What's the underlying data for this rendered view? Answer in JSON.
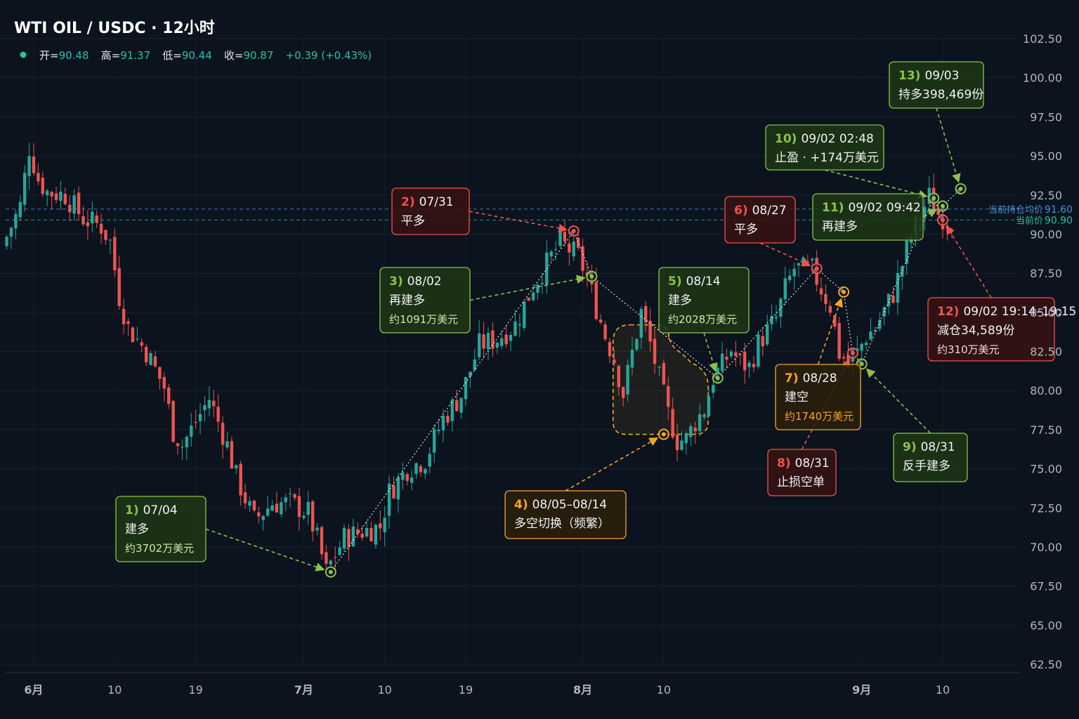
{
  "title": "WTI OIL / USDC · 12小时",
  "ohlc": {
    "open_label": "开=",
    "open": "90.48",
    "high_label": "高=",
    "high": "91.37",
    "low_label": "低=",
    "low": "90.44",
    "close_label": "收=",
    "close": "90.87",
    "change": "+0.39 (+0.43%)"
  },
  "colors": {
    "background": "#0b131e",
    "up": "#26a69a",
    "down": "#ef5350",
    "long": "#8bc34a",
    "short": "#ef5350",
    "neutral": "#f5a623"
  },
  "chart_data": {
    "type": "candlestick",
    "title": "WTI OIL / USDC · 12小时",
    "ylim": [
      62.5,
      102.5
    ],
    "y_ticks": [
      "102.50",
      "100.00",
      "97.50",
      "95.00",
      "92.50",
      "90.00",
      "87.50",
      "85.00",
      "82.50",
      "80.00",
      "77.50",
      "75.00",
      "72.50",
      "70.00",
      "67.50",
      "65.00",
      "62.50"
    ],
    "x_ticks": [
      {
        "label": "6月",
        "date": "06-01",
        "bold": true
      },
      {
        "label": "10",
        "date": "06-10",
        "bold": false
      },
      {
        "label": "19",
        "date": "06-19",
        "bold": false
      },
      {
        "label": "7月",
        "date": "07-01",
        "bold": true
      },
      {
        "label": "10",
        "date": "07-10",
        "bold": false
      },
      {
        "label": "19",
        "date": "07-19",
        "bold": false
      },
      {
        "label": "8月",
        "date": "08-01",
        "bold": true
      },
      {
        "label": "10",
        "date": "08-10",
        "bold": false
      },
      {
        "label": "9月",
        "date": "09-01",
        "bold": true
      },
      {
        "label": "10",
        "date": "09-10",
        "bold": false
      }
    ],
    "price_path": [
      [
        "05-29",
        89.2
      ],
      [
        "05-31",
        91.8
      ],
      [
        "06-01",
        95.5
      ],
      [
        "06-02",
        93.5
      ],
      [
        "06-03",
        92.7
      ],
      [
        "06-05",
        92.5
      ],
      [
        "06-07",
        91.0
      ],
      [
        "06-09",
        90.5
      ],
      [
        "06-10",
        89.5
      ],
      [
        "06-11",
        86.0
      ],
      [
        "06-12",
        84.0
      ],
      [
        "06-14",
        82.5
      ],
      [
        "06-16",
        80.2
      ],
      [
        "06-17",
        77.4
      ],
      [
        "06-18",
        76.5
      ],
      [
        "06-20",
        78.5
      ],
      [
        "06-21",
        79.5
      ],
      [
        "06-23",
        76.5
      ],
      [
        "06-24",
        74.5
      ],
      [
        "06-26",
        71.7
      ],
      [
        "06-28",
        72.8
      ],
      [
        "06-30",
        72.8
      ],
      [
        "07-02",
        72.2
      ],
      [
        "07-03",
        70.5
      ],
      [
        "07-04",
        68.4
      ],
      [
        "07-06",
        70.6
      ],
      [
        "07-08",
        71.0
      ],
      [
        "07-10",
        71.3
      ],
      [
        "07-11",
        73.5
      ],
      [
        "07-13",
        75.0
      ],
      [
        "07-15",
        75.6
      ],
      [
        "07-17",
        78.2
      ],
      [
        "07-19",
        79.7
      ],
      [
        "07-21",
        82.9
      ],
      [
        "07-23",
        83.3
      ],
      [
        "07-25",
        84.2
      ],
      [
        "07-27",
        86.7
      ],
      [
        "07-30",
        89.5
      ],
      [
        "07-31",
        89.0
      ],
      [
        "08-01",
        88.6
      ],
      [
        "08-02",
        87.2
      ],
      [
        "08-03",
        85.3
      ],
      [
        "08-04",
        83.5
      ],
      [
        "08-05",
        82.0
      ],
      [
        "08-06",
        79.8
      ],
      [
        "08-08",
        85.0
      ],
      [
        "08-09",
        83.0
      ],
      [
        "08-11",
        78.5
      ],
      [
        "08-12",
        76.8
      ],
      [
        "08-13",
        76.9
      ],
      [
        "08-14",
        78.0
      ],
      [
        "08-15",
        78.8
      ],
      [
        "08-16",
        80.8
      ],
      [
        "08-17",
        81.6
      ],
      [
        "08-18",
        82.6
      ],
      [
        "08-19",
        81.8
      ],
      [
        "08-20",
        81.5
      ],
      [
        "08-21",
        83.0
      ],
      [
        "08-23",
        84.6
      ],
      [
        "08-24",
        86.5
      ],
      [
        "08-25",
        87.8
      ],
      [
        "08-27",
        87.7
      ],
      [
        "08-28",
        86.5
      ],
      [
        "08-29",
        85.4
      ],
      [
        "08-30",
        82.4
      ],
      [
        "08-31",
        81.8
      ],
      [
        "09-01",
        82.4
      ],
      [
        "09-02",
        83.5
      ],
      [
        "09-03",
        84.0
      ],
      [
        "09-05",
        86.2
      ],
      [
        "09-07",
        89.9
      ],
      [
        "09-09",
        92.4
      ],
      [
        "09-10",
        91.3
      ],
      [
        "09-11",
        90.9
      ]
    ],
    "price_lines": [
      {
        "label": "当前持仓均价",
        "value_text": "91.60",
        "value": 91.6,
        "color": "#4a90d9"
      },
      {
        "label": "当前价",
        "value_text": "90.90",
        "value": 90.9,
        "color": "#26c2a4"
      }
    ],
    "range_annotation": {
      "from": "08-05",
      "to": "08-14",
      "low": 77.2,
      "high": 84.2
    },
    "annotations": [
      {
        "num": "1)",
        "title": "07/04",
        "line2": "建多",
        "line3": "约3702万美元",
        "kind": "long",
        "marker_date": "07-04",
        "marker_price": 68.4
      },
      {
        "num": "2)",
        "title": "07/31",
        "line2": "平多",
        "line3": "",
        "kind": "short",
        "marker_date": "07-31",
        "marker_price": 90.2
      },
      {
        "num": "3)",
        "title": "08/02",
        "line2": "再建多",
        "line3": "约1091万美元",
        "kind": "long",
        "marker_date": "08-02",
        "marker_price": 87.3
      },
      {
        "num": "4)",
        "title": "08/05–08/14",
        "line2": "多空切换（频繁）",
        "line3": "",
        "kind": "neutral",
        "marker_date": "08-10",
        "marker_price": 77.2
      },
      {
        "num": "5)",
        "title": "08/14",
        "line2": "建多",
        "line3": "约2028万美元",
        "kind": "long",
        "marker_date": "08-16",
        "marker_price": 80.8
      },
      {
        "num": "6)",
        "title": "08/27",
        "line2": "平多",
        "line3": "",
        "kind": "short",
        "marker_date": "08-27",
        "marker_price": 87.8
      },
      {
        "num": "7)",
        "title": "08/28",
        "line2": "建空",
        "line3": "约1740万美元",
        "kind": "neutral",
        "marker_date": "08-30",
        "marker_price": 86.3
      },
      {
        "num": "8)",
        "title": "08/31",
        "line2": "止损空单",
        "line3": "",
        "kind": "short",
        "marker_date": "08-31",
        "marker_price": 82.4
      },
      {
        "num": "9)",
        "title": "08/31",
        "line2": "反手建多",
        "line3": "",
        "kind": "long",
        "marker_date": "09-01",
        "marker_price": 81.7
      },
      {
        "num": "10)",
        "title": "09/02 02:48",
        "line2": "止盈 · +174万美元",
        "line3": "",
        "kind": "long",
        "marker_date": "09-09",
        "marker_price": 92.3
      },
      {
        "num": "11)",
        "title": "09/02 09:42",
        "line2": "再建多",
        "line3": "",
        "kind": "long",
        "marker_date": "09-10",
        "marker_price": 91.8
      },
      {
        "num": "12)",
        "title": "09/02 19:14–19:15",
        "line2": "减仓34,589份",
        "line3": "约310万美元",
        "kind": "short",
        "marker_date": "09-10",
        "marker_price": 90.9
      },
      {
        "num": "13)",
        "title": "09/03",
        "line2": "持多398,469份",
        "line3": "",
        "kind": "long",
        "marker_date": "09-12",
        "marker_price": 92.9
      }
    ]
  }
}
